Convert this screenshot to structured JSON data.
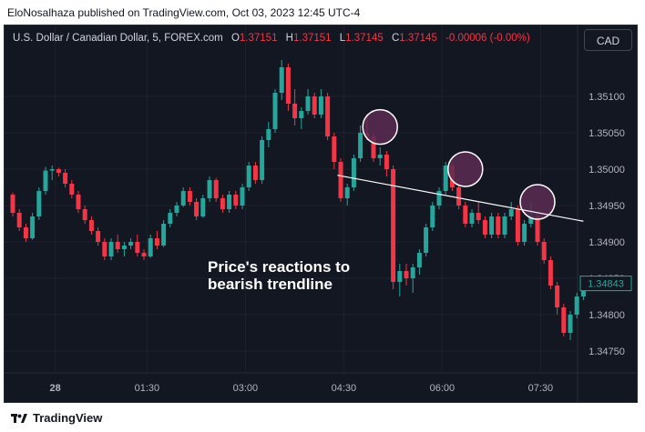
{
  "publisher_line": "EloNosalhaza published on TradingView.com, Oct 03, 2023 12:45 UTC-4",
  "legend": {
    "symbol": "U.S. Dollar / Canadian Dollar, 5, FOREX.com",
    "o_key": "O",
    "o": "1.37151",
    "h_key": "H",
    "h": "1.37151",
    "l_key": "L",
    "l": "1.37145",
    "c_key": "C",
    "c": "1.37145",
    "change": "-0.00006 (-0.00%)"
  },
  "currency_button": "CAD",
  "annotation": [
    "Price's reactions to",
    "bearish trendline"
  ],
  "footer_brand": "TradingView",
  "colors": {
    "up": "#26a69a",
    "down": "#f23645",
    "background": "#131722",
    "grid": "#1e222d",
    "trendline": "#ffffff",
    "circle_fill": "#5b2c52"
  },
  "chart_data": {
    "type": "candlestick",
    "x_ticks": [
      "28",
      "01:30",
      "03:00",
      "04:30",
      "06:00",
      "07:30"
    ],
    "x_tick_index": [
      3,
      17,
      32,
      47,
      62,
      77
    ],
    "y_ticks": [
      "1.35100",
      "1.35050",
      "1.35000",
      "1.34950",
      "1.34900",
      "1.34850",
      "1.34800",
      "1.34750"
    ],
    "ylim": [
      1.3472,
      1.3516
    ],
    "last_price_label": "1.34843",
    "last_price": 1.34843,
    "candles": [
      [
        1.34965,
        1.34968,
        1.34935,
        1.3494
      ],
      [
        1.3494,
        1.34945,
        1.34915,
        1.3492
      ],
      [
        1.3492,
        1.34925,
        1.349,
        1.34905
      ],
      [
        1.34905,
        1.3494,
        1.34903,
        1.34935
      ],
      [
        1.34935,
        1.34975,
        1.3493,
        1.3497
      ],
      [
        1.3497,
        1.35003,
        1.34965,
        1.34998
      ],
      [
        1.34998,
        1.35005,
        1.34985,
        1.35
      ],
      [
        1.35,
        1.35002,
        1.3499,
        1.34995
      ],
      [
        1.34995,
        1.35,
        1.34975,
        1.3498
      ],
      [
        1.3498,
        1.34985,
        1.3496,
        1.34965
      ],
      [
        1.34965,
        1.3497,
        1.3494,
        1.34945
      ],
      [
        1.34945,
        1.3495,
        1.34925,
        1.3493
      ],
      [
        1.3493,
        1.34935,
        1.3491,
        1.34915
      ],
      [
        1.34915,
        1.3492,
        1.34895,
        1.349
      ],
      [
        1.349,
        1.34905,
        1.34875,
        1.3488
      ],
      [
        1.3488,
        1.34905,
        1.34875,
        1.349
      ],
      [
        1.349,
        1.3491,
        1.34885,
        1.3489
      ],
      [
        1.3489,
        1.349,
        1.3488,
        1.34895
      ],
      [
        1.34895,
        1.34905,
        1.3489,
        1.349
      ],
      [
        1.349,
        1.3491,
        1.3488,
        1.34885
      ],
      [
        1.34885,
        1.3489,
        1.34875,
        1.3488
      ],
      [
        1.3488,
        1.3491,
        1.34878,
        1.34905
      ],
      [
        1.34905,
        1.34915,
        1.3489,
        1.34895
      ],
      [
        1.34895,
        1.3493,
        1.34893,
        1.34925
      ],
      [
        1.34925,
        1.34945,
        1.3492,
        1.3494
      ],
      [
        1.3494,
        1.34955,
        1.34935,
        1.3495
      ],
      [
        1.3495,
        1.34975,
        1.34948,
        1.3497
      ],
      [
        1.3497,
        1.34975,
        1.3495,
        1.34955
      ],
      [
        1.34955,
        1.3496,
        1.3493,
        1.34935
      ],
      [
        1.34935,
        1.34965,
        1.34933,
        1.3496
      ],
      [
        1.3496,
        1.3499,
        1.34955,
        1.34985
      ],
      [
        1.34985,
        1.34988,
        1.34955,
        1.3496
      ],
      [
        1.3496,
        1.34965,
        1.3494,
        1.34945
      ],
      [
        1.34945,
        1.3497,
        1.3494,
        1.34965
      ],
      [
        1.34965,
        1.3497,
        1.34945,
        1.3495
      ],
      [
        1.3495,
        1.3498,
        1.34945,
        1.34975
      ],
      [
        1.34975,
        1.3501,
        1.3497,
        1.35005
      ],
      [
        1.35005,
        1.3501,
        1.3498,
        1.34985
      ],
      [
        1.34985,
        1.35045,
        1.3498,
        1.3504
      ],
      [
        1.3504,
        1.35065,
        1.3503,
        1.35055
      ],
      [
        1.35055,
        1.3511,
        1.3505,
        1.35105
      ],
      [
        1.35105,
        1.3515,
        1.35095,
        1.3514
      ],
      [
        1.3514,
        1.35145,
        1.3508,
        1.3509
      ],
      [
        1.3509,
        1.3511,
        1.3506,
        1.3507
      ],
      [
        1.3507,
        1.35085,
        1.35055,
        1.3508
      ],
      [
        1.3508,
        1.3511,
        1.35075,
        1.351
      ],
      [
        1.351,
        1.35105,
        1.3507,
        1.35075
      ],
      [
        1.35075,
        1.3511,
        1.3507,
        1.351
      ],
      [
        1.351,
        1.35105,
        1.3504,
        1.35045
      ],
      [
        1.35045,
        1.3505,
        1.35,
        1.3501
      ],
      [
        1.3501,
        1.35015,
        1.34955,
        1.3496
      ],
      [
        1.3496,
        1.3498,
        1.3495,
        1.34975
      ],
      [
        1.34975,
        1.3502,
        1.3497,
        1.35015
      ],
      [
        1.35015,
        1.3506,
        1.3501,
        1.3505
      ],
      [
        1.3505,
        1.35075,
        1.3504,
        1.35045
      ],
      [
        1.35045,
        1.3505,
        1.3501,
        1.35015
      ],
      [
        1.35015,
        1.3503,
        1.35005,
        1.3502
      ],
      [
        1.3502,
        1.35025,
        1.3499,
        1.35
      ],
      [
        1.35,
        1.35005,
        1.34835,
        1.34845
      ],
      [
        1.34845,
        1.3487,
        1.34825,
        1.3486
      ],
      [
        1.3486,
        1.3487,
        1.3484,
        1.3485
      ],
      [
        1.3485,
        1.3487,
        1.3483,
        1.34865
      ],
      [
        1.34865,
        1.3489,
        1.34855,
        1.34885
      ],
      [
        1.34885,
        1.34925,
        1.3488,
        1.3492
      ],
      [
        1.3492,
        1.34955,
        1.34915,
        1.3495
      ],
      [
        1.3495,
        1.34975,
        1.34945,
        1.3497
      ],
      [
        1.3497,
        1.3501,
        1.34965,
        1.35005
      ],
      [
        1.35005,
        1.3501,
        1.3497,
        1.34975
      ],
      [
        1.34975,
        1.3498,
        1.34945,
        1.3495
      ],
      [
        1.3495,
        1.34955,
        1.3492,
        1.34925
      ],
      [
        1.34925,
        1.34945,
        1.3492,
        1.3494
      ],
      [
        1.3494,
        1.34955,
        1.34925,
        1.3493
      ],
      [
        1.3493,
        1.34935,
        1.34905,
        1.3491
      ],
      [
        1.3491,
        1.3494,
        1.34905,
        1.34935
      ],
      [
        1.34935,
        1.3494,
        1.34905,
        1.3491
      ],
      [
        1.3491,
        1.3494,
        1.34905,
        1.34935
      ],
      [
        1.34935,
        1.34955,
        1.3493,
        1.34945
      ],
      [
        1.34945,
        1.3495,
        1.34895,
        1.349
      ],
      [
        1.349,
        1.3493,
        1.34895,
        1.34925
      ],
      [
        1.34925,
        1.34955,
        1.3492,
        1.34935
      ],
      [
        1.34935,
        1.3494,
        1.34895,
        1.349
      ],
      [
        1.349,
        1.34905,
        1.3487,
        1.34875
      ],
      [
        1.34875,
        1.3488,
        1.34835,
        1.3484
      ],
      [
        1.3484,
        1.34845,
        1.348,
        1.3481
      ],
      [
        1.3481,
        1.34815,
        1.3477,
        1.34775
      ],
      [
        1.34775,
        1.34805,
        1.34765,
        1.348
      ],
      [
        1.348,
        1.3483,
        1.34795,
        1.34825
      ],
      [
        1.34825,
        1.3485,
        1.3482,
        1.34843
      ]
    ],
    "trendline": [
      [
        0,
        1.35075
      ],
      [
        92,
        1.3492
      ]
    ],
    "trendline_x_index": [
      49.5,
      87
    ],
    "touch_circles": [
      {
        "index": 56,
        "price": 1.35058
      },
      {
        "index": 69,
        "price": 1.35
      },
      {
        "index": 80,
        "price": 1.34955
      }
    ]
  }
}
